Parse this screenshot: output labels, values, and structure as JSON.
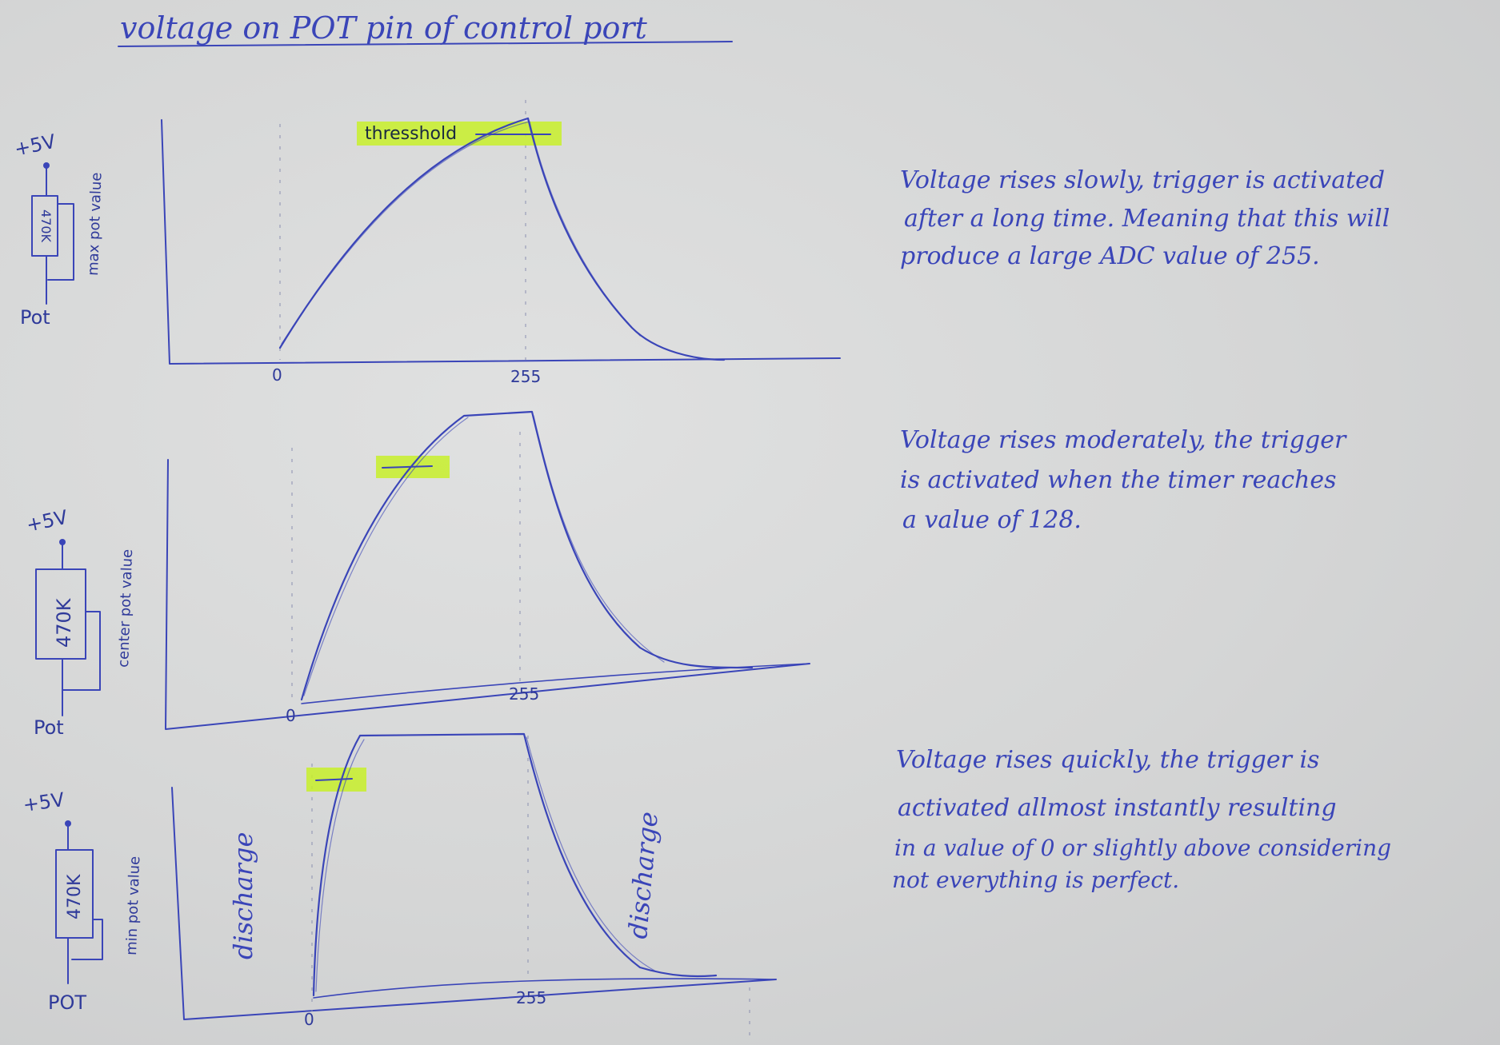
{
  "title": "voltage on POT pin of control port",
  "panels": [
    {
      "circuit": {
        "supply": "+5V",
        "resistor": "470K",
        "pin": "Pot",
        "wiper": "max pot value"
      },
      "threshold_label": "thresshold",
      "x_ticks": [
        "0",
        "255"
      ],
      "note": [
        "Voltage rises slowly, trigger is activated",
        "after a long time. Meaning that this will",
        "produce a large ADC value of 255."
      ]
    },
    {
      "circuit": {
        "supply": "+5V",
        "resistor": "470K",
        "pin": "Pot",
        "wiper": "center pot value"
      },
      "x_ticks": [
        "0",
        "255"
      ],
      "note": [
        "Voltage rises moderately, the trigger",
        "is activated when the timer reaches",
        "a value of 128."
      ]
    },
    {
      "circuit": {
        "supply": "+5V",
        "resistor": "470K",
        "pin": "POT",
        "wiper": "min pot value"
      },
      "x_ticks": [
        "0",
        "255"
      ],
      "annotations": [
        "discharge",
        "discharge"
      ],
      "note": [
        "Voltage rises quickly, the trigger is",
        "activated allmost instantly resulting",
        "in a value of 0 or slightly above considering",
        "not everything is perfect."
      ]
    }
  ]
}
